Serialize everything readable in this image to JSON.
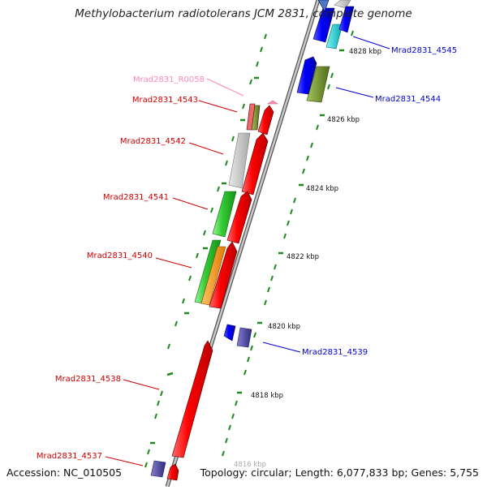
{
  "title": "Methylobacterium radiotolerans JCM 2831, complete genome",
  "accession_text": "Accession: NC_010505",
  "topology_text": "Topology: circular; Length: 6,077,833 bp; Genes: 5,755",
  "scale_labels": [
    "4828 kbp",
    "4826 kbp",
    "4824 kbp",
    "4822 kbp",
    "4820 kbp",
    "4818 kbp",
    "4816 kbp"
  ],
  "gene_labels": {
    "forward": [
      {
        "id": "Mrad2831_R0058",
        "color": "#ff88bb"
      },
      {
        "id": "Mrad2831_4543",
        "color": "#cc0000"
      },
      {
        "id": "Mrad2831_4542",
        "color": "#cc0000"
      },
      {
        "id": "Mrad2831_4541",
        "color": "#cc0000"
      },
      {
        "id": "Mrad2831_4540",
        "color": "#cc0000"
      },
      {
        "id": "Mrad2831_4538",
        "color": "#cc0000"
      },
      {
        "id": "Mrad2831_4537",
        "color": "#cc0000"
      }
    ],
    "reverse": [
      {
        "id": "Mrad2831_4545",
        "color": "#0000cc"
      },
      {
        "id": "Mrad2831_4544",
        "color": "#0000cc"
      },
      {
        "id": "Mrad2831_4539",
        "color": "#0000cc"
      }
    ]
  },
  "colors": {
    "backbone": "#9a9a9a",
    "forward_gene": "#ff0000",
    "reverse_gene": "#0000ff",
    "tick": "#1f8a1f"
  }
}
